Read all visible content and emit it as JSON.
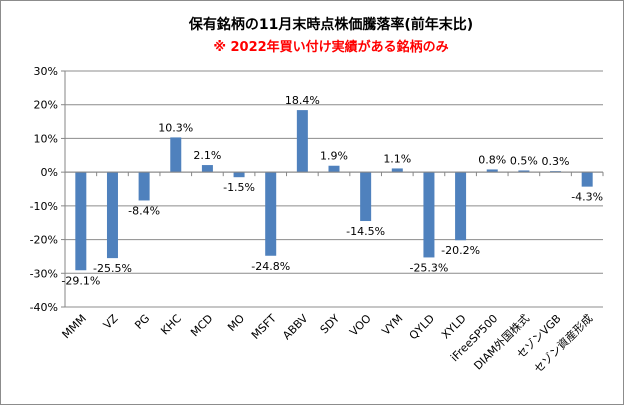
{
  "chart_data": {
    "type": "bar",
    "title": "保有銘柄の11月末時点株価騰落率(前年末比)",
    "subtitle": "※ 2022年買い付け実績がある銘柄のみ",
    "categories": [
      "MMM",
      "VZ",
      "PG",
      "KHC",
      "MCD",
      "MO",
      "MSFT",
      "ABBV",
      "SDY",
      "VOO",
      "VYM",
      "QYLD",
      "XYLD",
      "iFreeSP500",
      "DIAM外国株式",
      "セゾンVGB",
      "セゾン資産形成"
    ],
    "values": [
      -29.1,
      -25.5,
      -8.4,
      10.3,
      2.1,
      -1.5,
      -24.8,
      18.4,
      1.9,
      -14.5,
      1.1,
      -25.3,
      -20.2,
      0.8,
      0.5,
      0.3,
      -4.3
    ],
    "data_labels": [
      "-29.1%",
      "-25.5%",
      "-8.4%",
      "10.3%",
      "2.1%",
      "-1.5%",
      "-24.8%",
      "18.4%",
      "1.9%",
      "-14.5%",
      "1.1%",
      "-25.3%",
      "-20.2%",
      "0.8%",
      "0.5%",
      "0.3%",
      "-4.3%"
    ],
    "yticks": [
      30,
      20,
      10,
      0,
      -10,
      -20,
      -30,
      -40
    ],
    "ytick_labels": [
      "30%",
      "20%",
      "10%",
      "0%",
      "-10%",
      "-20%",
      "-30%",
      "-40%"
    ],
    "ylim": [
      -40,
      30
    ],
    "xlabel": "",
    "ylabel": "",
    "grid": true,
    "legend": "none",
    "colors": {
      "bar": "#4f81bd",
      "grid": "#8c8c8c",
      "subtitle": "#ff0000",
      "axis": "#868686"
    }
  }
}
